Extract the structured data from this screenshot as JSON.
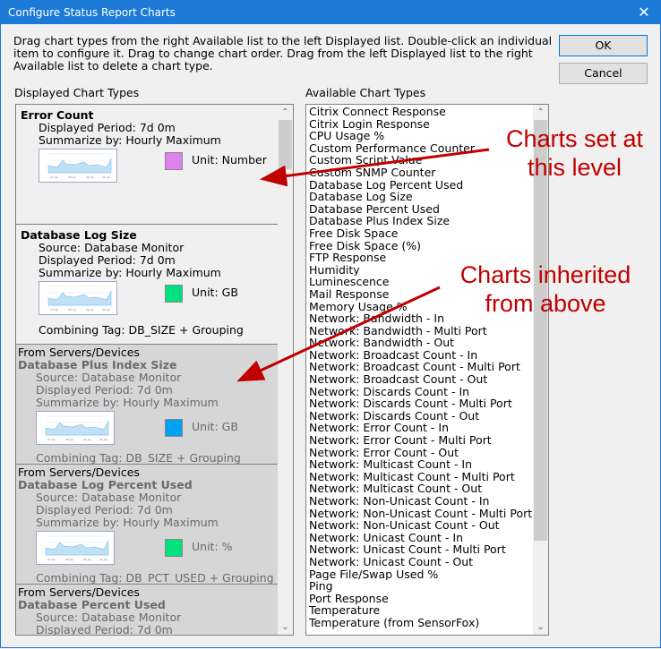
{
  "window": {
    "title": "Configure Status Report Charts",
    "close_icon": "close-icon"
  },
  "instructions": "Drag chart types from the right Available list to the left Displayed list.  Double-click an individual item to configure it.  Drag to change chart order.  Drag from the left Displayed list to the right Available list to delete a chart type.",
  "buttons": {
    "ok": "OK",
    "cancel": "Cancel"
  },
  "displayed": {
    "label": "Displayed Chart Types",
    "cards": [
      {
        "from": "",
        "name": "Error Count",
        "details": [
          "Displayed Period: 7d 0m",
          "Summarize by: Hourly Maximum"
        ],
        "color": "#dd80f0",
        "unit": "Unit: Number",
        "tag": "",
        "inherited": false
      },
      {
        "from": "",
        "name": "Database Log Size",
        "details": [
          "Source: Database Monitor",
          "Displayed Period: 7d 0m",
          "Summarize by: Hourly Maximum"
        ],
        "color": "#00e080",
        "unit": "Unit: GB",
        "tag": "Combining Tag: DB_SIZE + Grouping",
        "inherited": false
      },
      {
        "from": "From Servers/Devices",
        "name": "Database Plus Index Size",
        "details": [
          "Source: Database Monitor",
          "Displayed Period: 7d 0m",
          "Summarize by: Hourly Maximum"
        ],
        "color": "#00a0f0",
        "unit": "Unit: GB",
        "tag": "Combining Tag: DB_SIZE + Grouping",
        "inherited": true
      },
      {
        "from": "From Servers/Devices",
        "name": "Database Log Percent Used",
        "details": [
          "Source: Database Monitor",
          "Displayed Period: 7d 0m",
          "Summarize by: Hourly Maximum"
        ],
        "color": "#00e080",
        "unit": "Unit: %",
        "tag": "Combining Tag: DB_PCT_USED + Grouping",
        "inherited": true
      },
      {
        "from": "From Servers/Devices",
        "name": "Database Percent Used",
        "details": [
          "Source: Database Monitor",
          "Displayed Period: 7d 0m"
        ],
        "color": "",
        "unit": "",
        "tag": "",
        "inherited": true
      }
    ]
  },
  "available": {
    "label": "Available Chart Types",
    "items": [
      "Citrix Connect Response",
      "Citrix Login Response",
      "CPU Usage %",
      "Custom Performance Counter",
      "Custom Script Value",
      "Custom SNMP Counter",
      "Database Log Percent Used",
      "Database Log Size",
      "Database Percent Used",
      "Database Plus Index Size",
      "Free Disk Space",
      "Free Disk Space (%)",
      "FTP Response",
      "Humidity",
      "Luminescence",
      "Mail Response",
      "Memory Usage %",
      "Network: Bandwidth - In",
      "Network: Bandwidth - Multi Port",
      "Network: Bandwidth - Out",
      "Network: Broadcast Count - In",
      "Network: Broadcast Count - Multi Port",
      "Network: Broadcast Count - Out",
      "Network: Discards Count - In",
      "Network: Discards Count - Multi Port",
      "Network: Discards Count - Out",
      "Network: Error Count - In",
      "Network: Error Count - Multi Port",
      "Network: Error Count - Out",
      "Network: Multicast Count - In",
      "Network: Multicast Count - Multi Port",
      "Network: Multicast Count - Out",
      "Network: Non-Unicast Count - In",
      "Network: Non-Unicast Count - Multi Port",
      "Network: Non-Unicast Count - Out",
      "Network: Unicast Count - In",
      "Network: Unicast Count - Multi Port",
      "Network: Unicast Count - Out",
      "Page File/Swap Used %",
      "Ping",
      "Port Response",
      "Temperature",
      "Temperature (from SensorFox)"
    ]
  },
  "annotations": {
    "set": "Charts set at this level",
    "inherited": "Charts inherited from above",
    "color": "#c00000"
  }
}
